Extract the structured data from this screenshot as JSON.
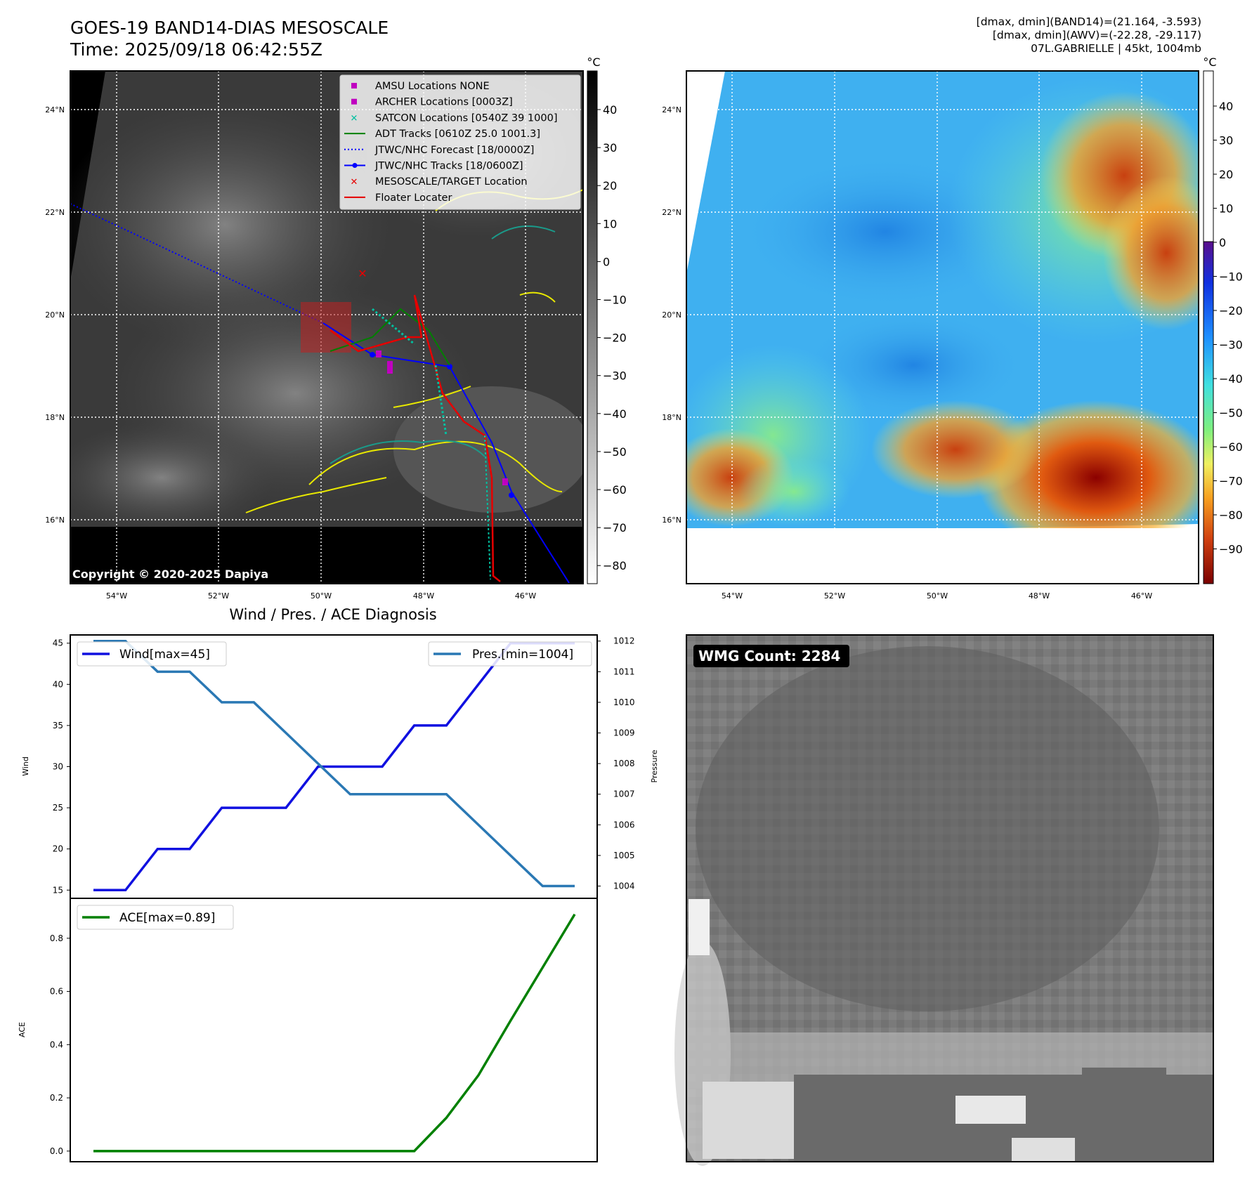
{
  "header": {
    "title_line1": "GOES-19 BAND14-DIAS MESOSCALE",
    "title_line2": "Time: 2025/09/18 06:42:55Z",
    "info_line1": "[dmax, dmin](BAND14)=(21.164, -3.593)",
    "info_line2": "[dmax, dmin](AWV)=(-22.28, -29.117)",
    "info_line3": "07L.GABRIELLE | 45kt, 1004mb"
  },
  "colors": {
    "jtwc_blue": "#0000ff",
    "floater_red": "#e60000",
    "adt_green": "#008000",
    "satcon_cyan": "#00c0a0",
    "archer_magenta": "#c000c0",
    "contour_yellow": "#e8e800",
    "contour_teal": "#1a9a8a",
    "wind_line": "#1010e0",
    "pres_line": "#2a78b4",
    "ace_line": "#008000"
  },
  "map_axes": {
    "lat_ticks": [
      "24°N",
      "22°N",
      "20°N",
      "18°N",
      "16°N"
    ],
    "lon_ticks": [
      "54°W",
      "52°W",
      "50°W",
      "48°W",
      "46°W"
    ]
  },
  "gray_colorbar": {
    "unit": "°C",
    "ticks": [
      "40",
      "30",
      "20",
      "10",
      "0",
      "−10",
      "−20",
      "−30",
      "−40",
      "−50",
      "−60",
      "−70",
      "−80"
    ]
  },
  "color_colorbar": {
    "unit": "°C",
    "ticks": [
      "40",
      "30",
      "20",
      "10",
      "0",
      "−10",
      "−20",
      "−30",
      "−40",
      "−50",
      "−60",
      "−70",
      "−80",
      "−90"
    ]
  },
  "legend": {
    "items": [
      {
        "label": "AMSU Locations NONE",
        "icon": "square-marker",
        "color": "#c000c0"
      },
      {
        "label": "ARCHER Locations [0003Z]",
        "icon": "square-marker",
        "color": "#c000c0"
      },
      {
        "label": "SATCON Locations [0540Z 39 1000]",
        "icon": "x-marker",
        "color": "#00c0a0"
      },
      {
        "label": "ADT Tracks [0610Z 25.0 1001.3]",
        "icon": "solid-line",
        "color": "#008000"
      },
      {
        "label": "JTWC/NHC Forecast [18/0000Z]",
        "icon": "dotted-line",
        "color": "#0000ff"
      },
      {
        "label": "JTWC/NHC Tracks [18/0600Z]",
        "icon": "line-dot",
        "color": "#0000ff"
      },
      {
        "label": "MESOSCALE/TARGET Location",
        "icon": "x-marker",
        "color": "#e60000"
      },
      {
        "label": "Floater Locater",
        "icon": "solid-line",
        "color": "#e60000"
      }
    ]
  },
  "copyright": "Copyright © 2020-2025 Dapiya",
  "wmg_count": "WMG Count: 2284",
  "chart_data": [
    {
      "type": "line",
      "title": "Wind / Pres. / ACE Diagnosis",
      "ylabel": "Wind",
      "y2label": "Pressure",
      "x": [
        0,
        1,
        2,
        3,
        4,
        5,
        6,
        7,
        8,
        9,
        10,
        11,
        12,
        13,
        14,
        15
      ],
      "ylim": [
        14,
        46
      ],
      "y2lim": [
        1003.6,
        1012.2
      ],
      "yticks": [
        15,
        20,
        25,
        30,
        35,
        40,
        45
      ],
      "y2ticks": [
        1004,
        1005,
        1006,
        1007,
        1008,
        1009,
        1010,
        1011,
        1012
      ],
      "grid": false,
      "series": [
        {
          "name": "Wind[max=45]",
          "axis": "left",
          "legend_position": "upper-left",
          "values": [
            15,
            15,
            20,
            20,
            25,
            25,
            25,
            30,
            30,
            30,
            35,
            35,
            40,
            45,
            45,
            45
          ]
        },
        {
          "name": "Pres.[min=1004]",
          "axis": "right",
          "legend_position": "upper-right",
          "values": [
            1012,
            1012,
            1011,
            1011,
            1010,
            1010,
            1009,
            1008,
            1007,
            1007,
            1007,
            1007,
            1006,
            1005,
            1004,
            1004
          ]
        }
      ]
    },
    {
      "type": "line",
      "ylabel": "ACE",
      "x": [
        0,
        1,
        2,
        3,
        4,
        5,
        6,
        7,
        8,
        9,
        10,
        11,
        12,
        13,
        14,
        15
      ],
      "ylim": [
        -0.04,
        0.95
      ],
      "yticks": [
        0.0,
        0.2,
        0.4,
        0.6,
        0.8
      ],
      "grid": false,
      "series": [
        {
          "name": "ACE[max=0.89]",
          "legend_position": "upper-left",
          "values": [
            0,
            0,
            0,
            0,
            0,
            0,
            0,
            0,
            0,
            0,
            0,
            0.125,
            0.285,
            0.49,
            0.69,
            0.89
          ]
        }
      ]
    }
  ]
}
